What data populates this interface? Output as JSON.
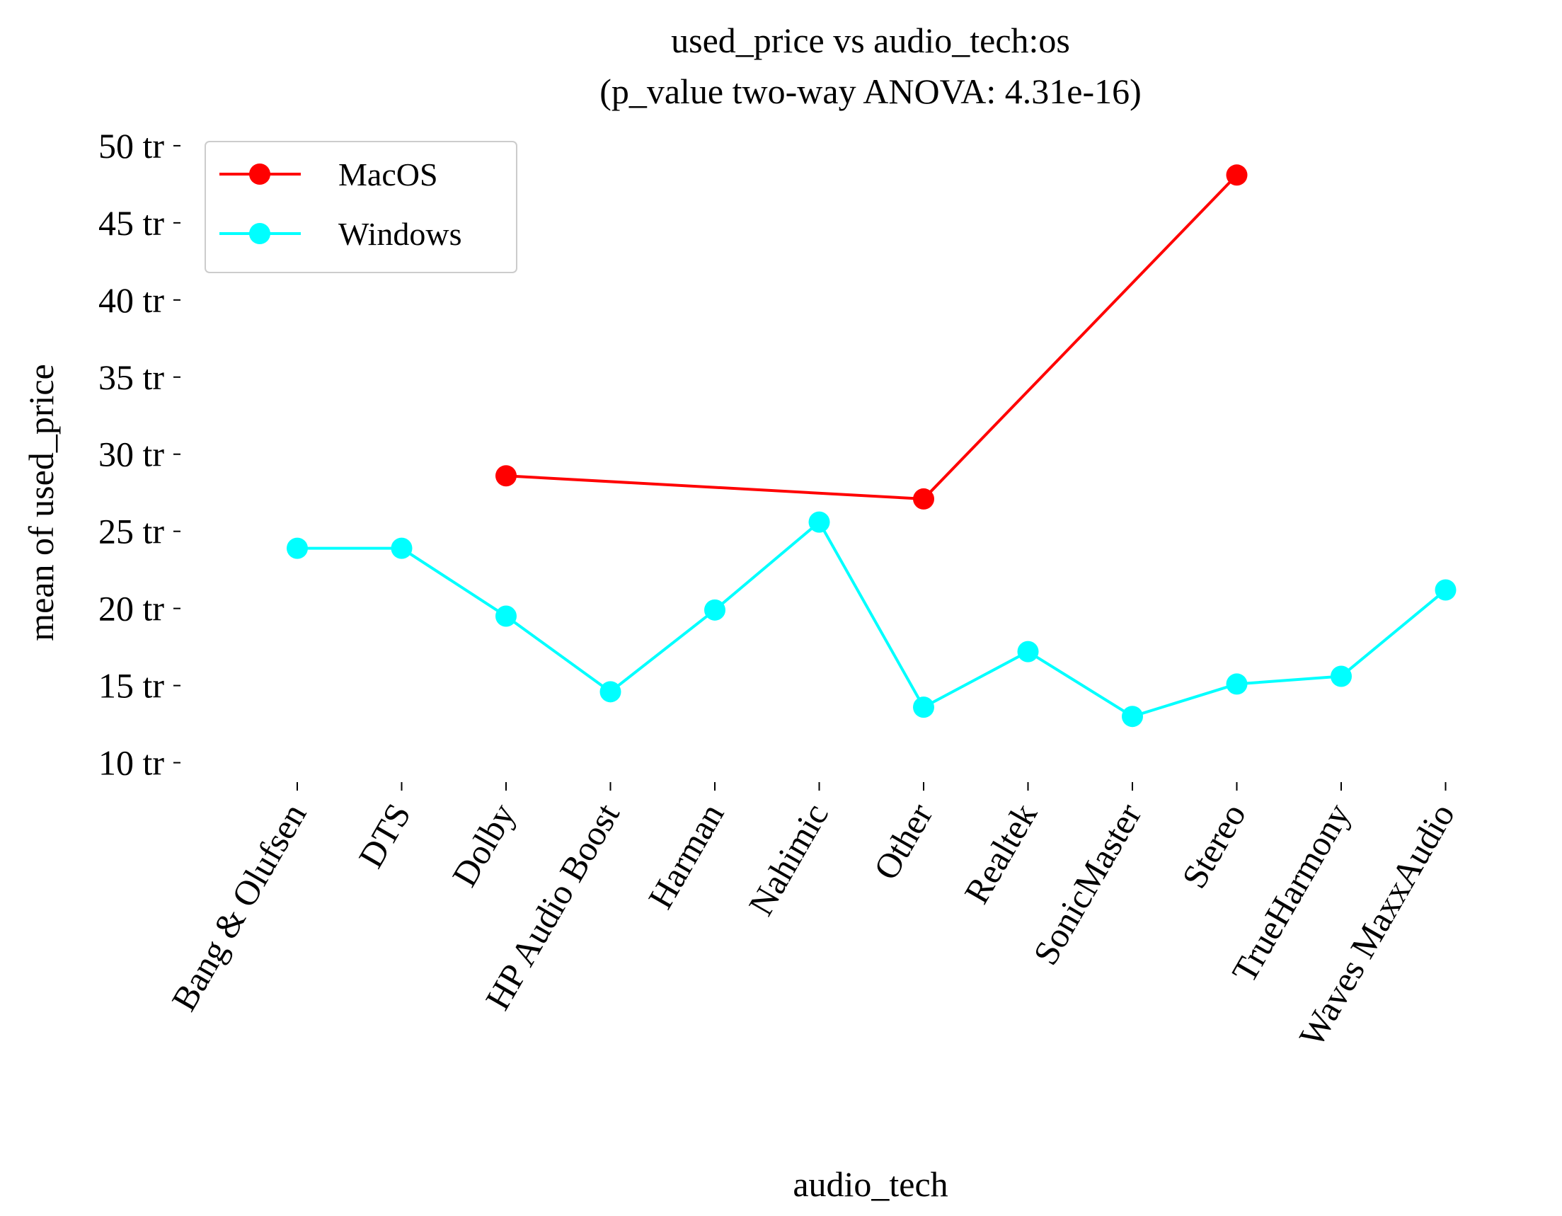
{
  "chart_data": {
    "type": "line",
    "title": "used_price vs audio_tech:os",
    "subtitle": "(p_value two-way ANOVA: 4.31e-16)",
    "xlabel": "audio_tech",
    "ylabel": "mean of used_price",
    "categories": [
      "Bang & Olufsen",
      "DTS",
      "Dolby",
      "HP Audio Boost",
      "Harman",
      "Nahimic",
      "Other",
      "Realtek",
      "SonicMaster",
      "Stereo",
      "TrueHarmony",
      "Waves MaxxAudio"
    ],
    "yticks": [
      10,
      15,
      20,
      25,
      30,
      35,
      40,
      45,
      50
    ],
    "ytick_labels": [
      "10 tr",
      "15 tr",
      "20 tr",
      "25 tr",
      "30 tr",
      "35 tr",
      "40 tr",
      "45 tr",
      "50 tr"
    ],
    "ylim": [
      9.2,
      50.5
    ],
    "grid": false,
    "legend_position": "top-left",
    "series": [
      {
        "name": "MacOS",
        "color": "#ff0000",
        "values": [
          null,
          null,
          28.6,
          null,
          null,
          null,
          27.1,
          null,
          null,
          48.1,
          null,
          null
        ]
      },
      {
        "name": "Windows",
        "color": "#00ffff",
        "values": [
          23.9,
          23.9,
          19.5,
          14.6,
          19.9,
          25.6,
          13.6,
          17.2,
          13.0,
          15.1,
          15.6,
          21.2
        ]
      }
    ]
  }
}
